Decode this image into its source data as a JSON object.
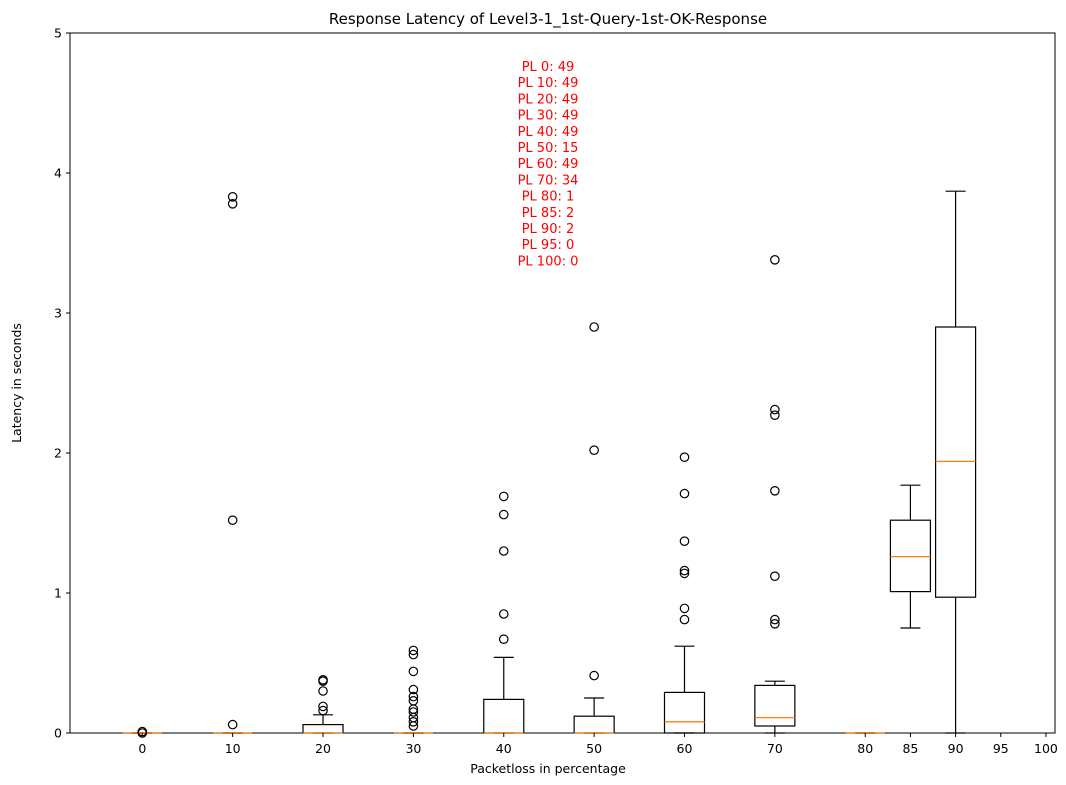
{
  "chart_data": {
    "type": "box",
    "title": "Response Latency of Level3-1_1st-Query-1st-OK-Response",
    "xlabel": "Packetloss in percentage",
    "ylabel": "Latency in seconds",
    "ylim": [
      0,
      5
    ],
    "xlim": [
      -8.0,
      101.0
    ],
    "yticks": [
      0,
      1,
      2,
      3,
      4,
      5
    ],
    "xticks": [
      0,
      10,
      20,
      30,
      40,
      50,
      60,
      70,
      80,
      85,
      90,
      95,
      100
    ],
    "annotation_color": "#ff0000",
    "median_color": "#ff7f0e",
    "annotations": [
      "PL 0: 49",
      "PL 10: 49",
      "PL 20: 49",
      "PL 30: 49",
      "PL 40: 49",
      "PL 50: 15",
      "PL 60: 49",
      "PL 70: 34",
      "PL 80: 1",
      "PL 85: 2",
      "PL 90: 2",
      "PL 95: 0",
      "PL 100: 0"
    ],
    "boxes": [
      {
        "x": 0,
        "q1": 0.0,
        "median": 0.0,
        "q3": 0.0,
        "whisker_low": 0.0,
        "whisker_high": 0.0,
        "outliers": [
          0.0,
          0.01
        ]
      },
      {
        "x": 10,
        "q1": 0.0,
        "median": 0.0,
        "q3": 0.0,
        "whisker_low": 0.0,
        "whisker_high": 0.0,
        "outliers": [
          3.83,
          3.78,
          1.52,
          0.06
        ]
      },
      {
        "x": 20,
        "q1": 0.0,
        "median": 0.0,
        "q3": 0.06,
        "whisker_low": 0.0,
        "whisker_high": 0.13,
        "outliers": [
          0.38,
          0.37,
          0.3,
          0.19,
          0.16
        ]
      },
      {
        "x": 30,
        "q1": 0.0,
        "median": 0.0,
        "q3": 0.0,
        "whisker_low": 0.0,
        "whisker_high": 0.0,
        "outliers": [
          0.59,
          0.56,
          0.44,
          0.31,
          0.26,
          0.23,
          0.17,
          0.15,
          0.11,
          0.08,
          0.05
        ]
      },
      {
        "x": 40,
        "q1": 0.0,
        "median": 0.0,
        "q3": 0.24,
        "whisker_low": 0.0,
        "whisker_high": 0.54,
        "outliers": [
          1.69,
          1.56,
          1.3,
          0.85,
          0.67
        ]
      },
      {
        "x": 50,
        "q1": 0.0,
        "median": 0.0,
        "q3": 0.12,
        "whisker_low": 0.0,
        "whisker_high": 0.25,
        "outliers": [
          2.9,
          2.02,
          0.41
        ]
      },
      {
        "x": 60,
        "q1": 0.0,
        "median": 0.08,
        "q3": 0.29,
        "whisker_low": 0.0,
        "whisker_high": 0.62,
        "outliers": [
          1.97,
          1.71,
          1.37,
          1.16,
          1.14,
          0.89,
          0.81
        ]
      },
      {
        "x": 70,
        "q1": 0.05,
        "median": 0.11,
        "q3": 0.34,
        "whisker_low": 0.0,
        "whisker_high": 0.37,
        "outliers": [
          3.38,
          2.31,
          2.27,
          1.73,
          1.12,
          0.81,
          0.78
        ]
      },
      {
        "x": 80,
        "q1": 0.0,
        "median": 0.0,
        "q3": 0.0,
        "whisker_low": 0.0,
        "whisker_high": 0.0,
        "outliers": []
      },
      {
        "x": 85,
        "q1": 1.01,
        "median": 1.26,
        "q3": 1.52,
        "whisker_low": 0.75,
        "whisker_high": 1.77,
        "outliers": []
      },
      {
        "x": 90,
        "q1": 0.97,
        "median": 1.94,
        "q3": 2.9,
        "whisker_low": 0.0,
        "whisker_high": 3.87,
        "outliers": []
      }
    ]
  }
}
